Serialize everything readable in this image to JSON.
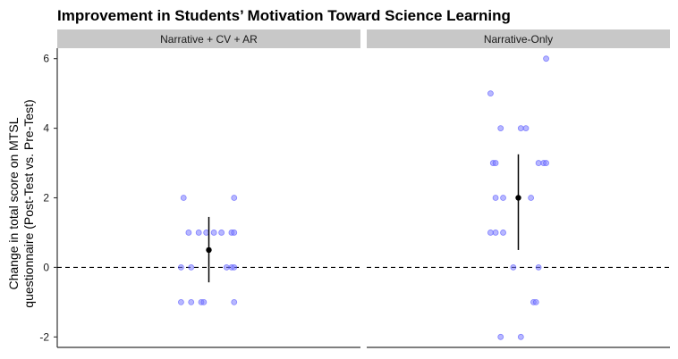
{
  "chart_data": {
    "type": "scatter",
    "title": "Improvement in Students’ Motivation Toward Science Learning",
    "ylabel_lines": [
      "Change in total score on MTSL",
      "questionnaire (Post-Test vs. Pre-Test)"
    ],
    "ylim": [
      -2.3,
      6.3
    ],
    "yticks": [
      -2,
      0,
      2,
      4,
      6
    ],
    "reference_line": {
      "y": 0,
      "style": "dashed"
    },
    "grid": false,
    "colors": {
      "points": "#7b7bff",
      "points_stroke": "#4a4aff",
      "summary": "#000000",
      "strip": "#c8c8c8"
    },
    "panels": [
      {
        "label": "Narrative + CV + AR",
        "points": [
          {
            "x": -0.1,
            "y": 2
          },
          {
            "x": 0.1,
            "y": 2
          },
          {
            "x": -0.08,
            "y": 1
          },
          {
            "x": -0.04,
            "y": 1
          },
          {
            "x": -0.01,
            "y": 1
          },
          {
            "x": 0.02,
            "y": 1
          },
          {
            "x": 0.05,
            "y": 1
          },
          {
            "x": 0.09,
            "y": 1
          },
          {
            "x": 0.1,
            "y": 1
          },
          {
            "x": -0.11,
            "y": 0
          },
          {
            "x": -0.07,
            "y": 0
          },
          {
            "x": 0.07,
            "y": 0
          },
          {
            "x": 0.09,
            "y": 0
          },
          {
            "x": 0.1,
            "y": 0
          },
          {
            "x": -0.11,
            "y": -1
          },
          {
            "x": -0.07,
            "y": -1
          },
          {
            "x": -0.03,
            "y": -1
          },
          {
            "x": -0.02,
            "y": -1
          },
          {
            "x": 0.1,
            "y": -1
          }
        ],
        "summary": {
          "mean": 0.5,
          "lower": -0.43,
          "upper": 1.45
        }
      },
      {
        "label": "Narrative-Only",
        "points": [
          {
            "x": 0.11,
            "y": 6
          },
          {
            "x": -0.11,
            "y": 5
          },
          {
            "x": -0.07,
            "y": 4
          },
          {
            "x": 0.01,
            "y": 4
          },
          {
            "x": 0.03,
            "y": 4
          },
          {
            "x": -0.1,
            "y": 3
          },
          {
            "x": -0.09,
            "y": 3
          },
          {
            "x": 0.08,
            "y": 3
          },
          {
            "x": 0.1,
            "y": 3
          },
          {
            "x": 0.11,
            "y": 3
          },
          {
            "x": -0.09,
            "y": 2
          },
          {
            "x": -0.06,
            "y": 2
          },
          {
            "x": 0.05,
            "y": 2
          },
          {
            "x": -0.11,
            "y": 1
          },
          {
            "x": -0.09,
            "y": 1
          },
          {
            "x": -0.06,
            "y": 1
          },
          {
            "x": -0.02,
            "y": 0
          },
          {
            "x": 0.08,
            "y": 0
          },
          {
            "x": 0.06,
            "y": -1
          },
          {
            "x": 0.07,
            "y": -1
          },
          {
            "x": -0.07,
            "y": -2
          },
          {
            "x": 0.01,
            "y": -2
          }
        ],
        "summary": {
          "mean": 2.0,
          "lower": 0.5,
          "upper": 3.25
        }
      }
    ]
  }
}
